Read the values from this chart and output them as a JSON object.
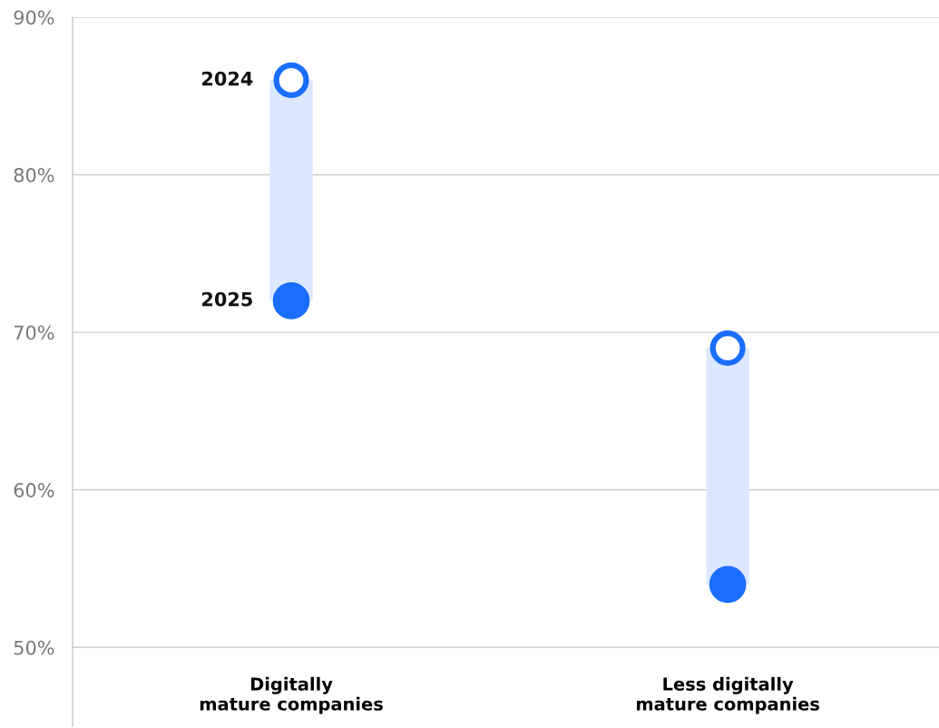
{
  "chart_data": {
    "type": "scatter",
    "categories": [
      "Digitally\nmature companies",
      "Less digitally\nmature companies"
    ],
    "series": [
      {
        "name": "2024",
        "color": "#1a6dff",
        "marker": "circle",
        "values": [
          86,
          69
        ]
      },
      {
        "name": "2025",
        "color": "#1a6dff",
        "marker": "circle",
        "values": [
          72,
          54
        ]
      }
    ],
    "ylim": [
      45,
      90
    ],
    "yticks": [
      {
        "value": 50,
        "label": "50%"
      },
      {
        "value": 60,
        "label": "60%"
      },
      {
        "value": 70,
        "label": "70%"
      },
      {
        "value": 80,
        "label": "80%"
      },
      {
        "value": 90,
        "label": "90%"
      }
    ],
    "grid": "y",
    "legend": false
  }
}
